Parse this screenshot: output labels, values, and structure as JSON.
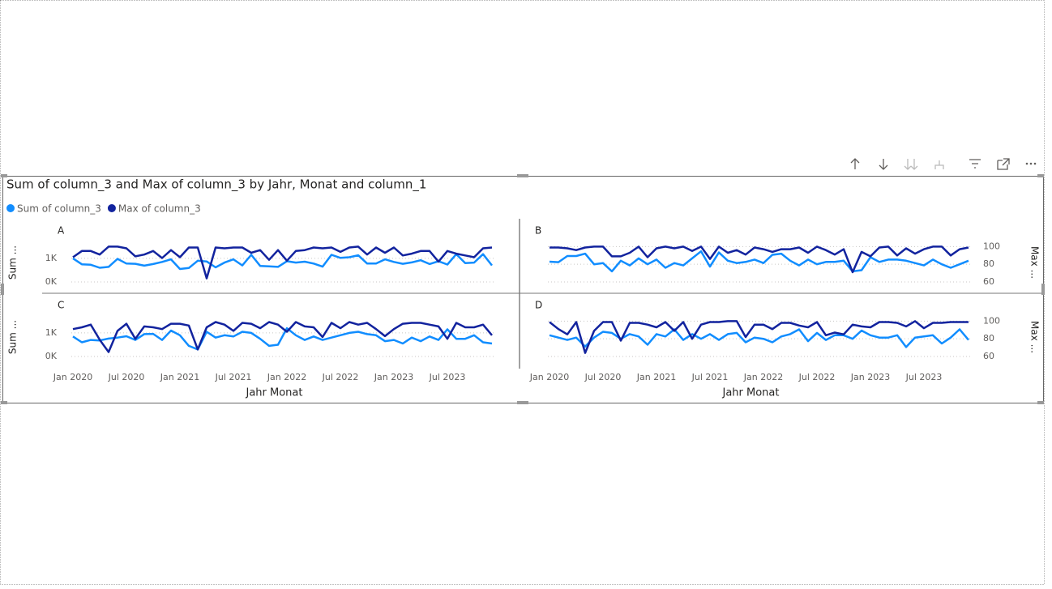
{
  "chart_data": {
    "type": "line",
    "title": "Sum of column_3 and Max of column_3 by Jahr, Monat and column_1",
    "x_label": "Jahr Monat",
    "y_label": "Sum ...",
    "y2_label": "Max ...",
    "series": [
      {
        "name": "Sum of column_3",
        "color": "#118dff"
      },
      {
        "name": "Max of column_3",
        "color": "#12239e",
        "axis": "y2"
      }
    ],
    "x": [
      "2020-01",
      "2020-02",
      "2020-03",
      "2020-04",
      "2020-05",
      "2020-06",
      "2020-07",
      "2020-08",
      "2020-09",
      "2020-10",
      "2020-11",
      "2020-12",
      "2021-01",
      "2021-02",
      "2021-03",
      "2021-04",
      "2021-05",
      "2021-06",
      "2021-07",
      "2021-08",
      "2021-09",
      "2021-10",
      "2021-11",
      "2021-12",
      "2022-01",
      "2022-02",
      "2022-03",
      "2022-04",
      "2022-05",
      "2022-06",
      "2022-07",
      "2022-08",
      "2022-09",
      "2022-10",
      "2022-11",
      "2022-12",
      "2023-01",
      "2023-02",
      "2023-03",
      "2023-04",
      "2023-05",
      "2023-06",
      "2023-07",
      "2023-08",
      "2023-09",
      "2023-10",
      "2023-11",
      "2023-12"
    ],
    "xticks": [
      {
        "value": "2020-01",
        "label": "Jan 2020"
      },
      {
        "value": "2020-07",
        "label": "Jul 2020"
      },
      {
        "value": "2021-01",
        "label": "Jan 2021"
      },
      {
        "value": "2021-07",
        "label": "Jul 2021"
      },
      {
        "value": "2022-01",
        "label": "Jan 2022"
      },
      {
        "value": "2022-07",
        "label": "Jul 2022"
      },
      {
        "value": "2023-01",
        "label": "Jan 2023"
      },
      {
        "value": "2023-07",
        "label": "Jul 2023"
      }
    ],
    "ylim": [
      0,
      1650
    ],
    "yticks": [
      {
        "value": 0,
        "label": "0K"
      },
      {
        "value": 1000,
        "label": "1K"
      }
    ],
    "y2lim": [
      60,
      104
    ],
    "y2ticks": [
      60,
      80,
      100
    ],
    "panels": [
      {
        "name": "A",
        "values": [
          [
            1000,
            750,
            730,
            600,
            640,
            980,
            780,
            770,
            690,
            760,
            850,
            960,
            550,
            590,
            900,
            870,
            620,
            820,
            960,
            700,
            1150,
            680,
            660,
            640,
            880,
            820,
            860,
            780,
            650,
            1150,
            1020,
            1050,
            1130,
            780,
            780,
            960,
            850,
            770,
            830,
            920,
            760,
            880,
            740,
            1180,
            800,
            820,
            1180,
            700
          ],
          [
            88,
            95,
            95,
            91,
            100,
            100,
            98,
            89,
            91,
            95,
            87,
            96,
            88,
            99,
            99,
            64,
            99,
            98,
            99,
            99,
            93,
            96,
            85,
            96,
            84,
            95,
            96,
            99,
            98,
            99,
            94,
            99,
            100,
            91,
            99,
            93,
            99,
            90,
            92,
            95,
            95,
            83,
            95,
            92,
            90,
            88,
            98,
            99
          ]
        ]
      },
      {
        "name": "B",
        "values": [
          [
            860,
            840,
            1100,
            1100,
            1200,
            750,
            800,
            450,
            900,
            700,
            1000,
            750,
            950,
            600,
            800,
            700,
            1000,
            1300,
            650,
            1250,
            900,
            800,
            850,
            950,
            800,
            1150,
            1200,
            900,
            700,
            950,
            750,
            850,
            850,
            900,
            450,
            500,
            1050,
            850,
            950,
            950,
            900,
            800,
            700,
            950,
            750,
            600,
            750,
            900
          ],
          [
            99,
            99,
            98,
            96,
            99,
            100,
            100,
            89,
            89,
            93,
            100,
            88,
            98,
            100,
            98,
            100,
            95,
            100,
            86,
            100,
            93,
            96,
            91,
            99,
            97,
            94,
            97,
            97,
            99,
            93,
            100,
            96,
            91,
            97,
            71,
            94,
            89,
            99,
            100,
            90,
            98,
            92,
            97,
            100,
            100,
            90,
            97,
            99
          ]
        ]
      },
      {
        "name": "C",
        "values": [
          [
            850,
            600,
            700,
            680,
            760,
            800,
            860,
            700,
            950,
            960,
            700,
            1100,
            900,
            450,
            300,
            1050,
            800,
            900,
            850,
            1050,
            1000,
            750,
            450,
            500,
            1200,
            900,
            700,
            850,
            700,
            800,
            900,
            1000,
            1050,
            950,
            900,
            650,
            700,
            550,
            800,
            650,
            850,
            700,
            1150,
            750,
            750,
            900,
            600,
            550
          ],
          [
            91,
            93,
            96,
            79,
            65,
            89,
            97,
            80,
            94,
            93,
            91,
            97,
            97,
            95,
            68,
            93,
            99,
            96,
            89,
            98,
            97,
            92,
            99,
            96,
            88,
            99,
            94,
            93,
            82,
            98,
            92,
            99,
            96,
            98,
            91,
            83,
            91,
            97,
            98,
            98,
            96,
            94,
            80,
            98,
            93,
            93,
            96,
            84
          ]
        ]
      },
      {
        "name": "D",
        "values": [
          [
            900,
            800,
            700,
            800,
            420,
            800,
            1050,
            1000,
            750,
            950,
            850,
            500,
            950,
            850,
            1150,
            700,
            950,
            750,
            950,
            700,
            950,
            1000,
            600,
            800,
            750,
            600,
            850,
            950,
            1150,
            650,
            1000,
            700,
            900,
            900,
            750,
            1100,
            900,
            800,
            800,
            900,
            400,
            800,
            850,
            900,
            550,
            800,
            1150,
            700
          ],
          [
            99,
            91,
            85,
            99,
            64,
            89,
            99,
            99,
            78,
            98,
            98,
            96,
            93,
            99,
            89,
            99,
            80,
            96,
            99,
            99,
            100,
            100,
            82,
            96,
            96,
            91,
            98,
            98,
            95,
            93,
            99,
            84,
            87,
            85,
            96,
            94,
            93,
            99,
            99,
            98,
            94,
            100,
            92,
            98,
            98,
            99,
            99,
            99
          ]
        ]
      }
    ]
  }
}
